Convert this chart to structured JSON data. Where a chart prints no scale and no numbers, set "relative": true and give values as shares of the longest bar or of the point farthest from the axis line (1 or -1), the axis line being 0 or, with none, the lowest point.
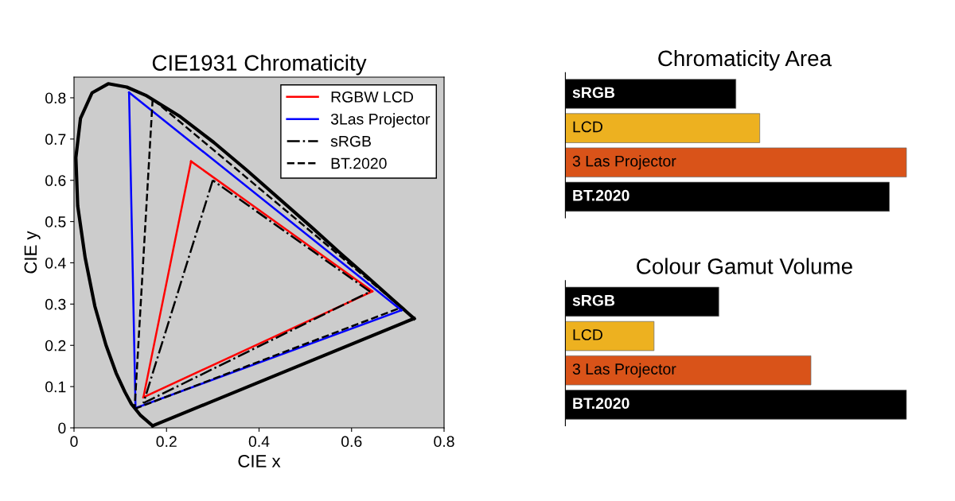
{
  "chart_data": [
    {
      "type": "line",
      "title": "CIE1931 Chromaticity",
      "xlabel": "CIE x",
      "ylabel": "CIE y",
      "xlim": [
        0,
        0.8
      ],
      "ylim": [
        0,
        0.85
      ],
      "xticks": [
        0,
        0.2,
        0.4,
        0.6,
        0.8
      ],
      "yticks": [
        0,
        0.1,
        0.2,
        0.3,
        0.4,
        0.5,
        0.6,
        0.7,
        0.8
      ],
      "grid": false,
      "legend": "top right",
      "marker": "none",
      "series": [
        {
          "color": "#000000",
          "line_style": "solid",
          "x": [
            0.17,
            0.144,
            0.124,
            0.11,
            0.091,
            0.069,
            0.045,
            0.024,
            0.008,
            0.004,
            0.014,
            0.039,
            0.074,
            0.114,
            0.155,
            0.23,
            0.302,
            0.373,
            0.444,
            0.513,
            0.575,
            0.627,
            0.692,
            0.719,
            0.735
          ],
          "values": [
            0.005,
            0.03,
            0.058,
            0.087,
            0.133,
            0.201,
            0.295,
            0.413,
            0.538,
            0.655,
            0.75,
            0.812,
            0.834,
            0.826,
            0.806,
            0.754,
            0.692,
            0.625,
            0.555,
            0.487,
            0.424,
            0.373,
            0.308,
            0.281,
            0.265
          ]
        },
        {
          "color": "#000000",
          "line_style": "solid",
          "x": [
            0.17,
            0.735
          ],
          "values": [
            0.005,
            0.265
          ]
        },
        {
          "name": "RGBW LCD",
          "color": "#ff0000",
          "line_style": "solid",
          "x": [
            0.253,
            0.645
          ],
          "values": [
            0.646,
            0.331
          ]
        },
        {
          "color": "#ff0000",
          "line_style": "solid",
          "x": [
            0.645,
            0.15
          ],
          "values": [
            0.331,
            0.074
          ]
        },
        {
          "color": "#ff0000",
          "line_style": "solid",
          "x": [
            0.15,
            0.253
          ],
          "values": [
            0.074,
            0.646
          ]
        },
        {
          "name": "3Las Projector",
          "color": "#0000ff",
          "line_style": "solid",
          "x": [
            0.119,
            0.708
          ],
          "values": [
            0.813,
            0.285
          ]
        },
        {
          "color": "#0000ff",
          "line_style": "solid",
          "x": [
            0.708,
            0.133
          ],
          "values": [
            0.285,
            0.048
          ]
        },
        {
          "color": "#0000ff",
          "line_style": "solid",
          "x": [
            0.133,
            0.119
          ],
          "values": [
            0.048,
            0.813
          ]
        },
        {
          "name": "sRGB",
          "color": "#000000",
          "line_style": "dashdot",
          "x": [
            0.64,
            0.3
          ],
          "values": [
            0.33,
            0.6
          ]
        },
        {
          "color": "#000000",
          "line_style": "dashdot",
          "x": [
            0.3,
            0.15
          ],
          "values": [
            0.6,
            0.06
          ]
        },
        {
          "color": "#000000",
          "line_style": "dashdot",
          "x": [
            0.15,
            0.64
          ],
          "values": [
            0.06,
            0.33
          ]
        },
        {
          "name": "BT.2020",
          "color": "#000000",
          "line_style": "dashed",
          "x": [
            0.708,
            0.17
          ],
          "values": [
            0.292,
            0.797
          ]
        },
        {
          "color": "#000000",
          "line_style": "dashed",
          "x": [
            0.17,
            0.131
          ],
          "values": [
            0.797,
            0.046
          ]
        },
        {
          "color": "#000000",
          "line_style": "dashed",
          "x": [
            0.131,
            0.708
          ],
          "values": [
            0.046,
            0.292
          ]
        }
      ]
    },
    {
      "type": "bar",
      "orientation": "horizontal",
      "relative": true,
      "title": "Chromaticity Area",
      "categories": [
        "sRGB",
        "LCD",
        "3 Las Projector",
        "BT.2020"
      ],
      "values": [
        0.5,
        0.57,
        1,
        0.95
      ],
      "colors": [
        "#000000",
        "#edb120",
        "#d95319",
        "#000000"
      ]
    },
    {
      "type": "bar",
      "orientation": "horizontal",
      "relative": true,
      "title": "Colour Gamut Volume",
      "categories": [
        "sRGB",
        "LCD",
        "3 Las Projector",
        "BT.2020"
      ],
      "values": [
        0.45,
        0.26,
        0.72,
        1
      ],
      "colors": [
        "#000000",
        "#edb120",
        "#d95319",
        "#000000"
      ]
    }
  ]
}
